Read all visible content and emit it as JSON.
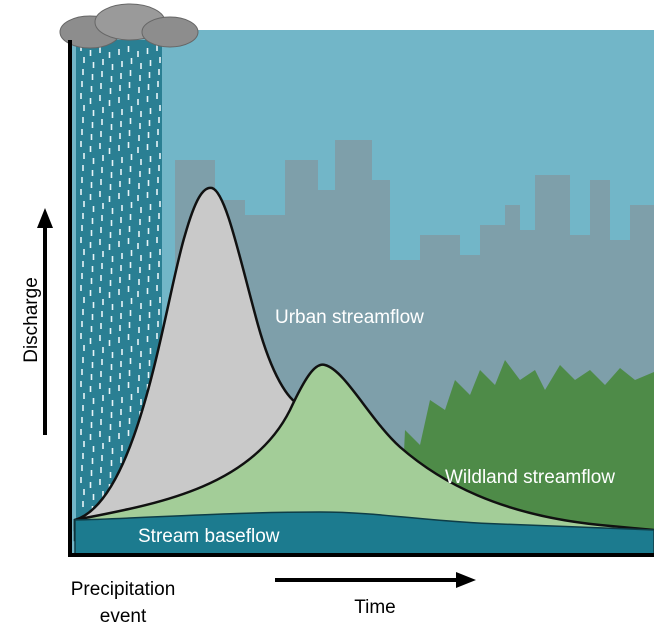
{
  "labels": {
    "y_axis": "Discharge",
    "x_axis": "Time",
    "precipitation": [
      "Precipitation",
      "event"
    ],
    "urban": "Urban streamflow",
    "wildland": "Wildland streamflow",
    "baseflow": "Stream baseflow"
  }
}
